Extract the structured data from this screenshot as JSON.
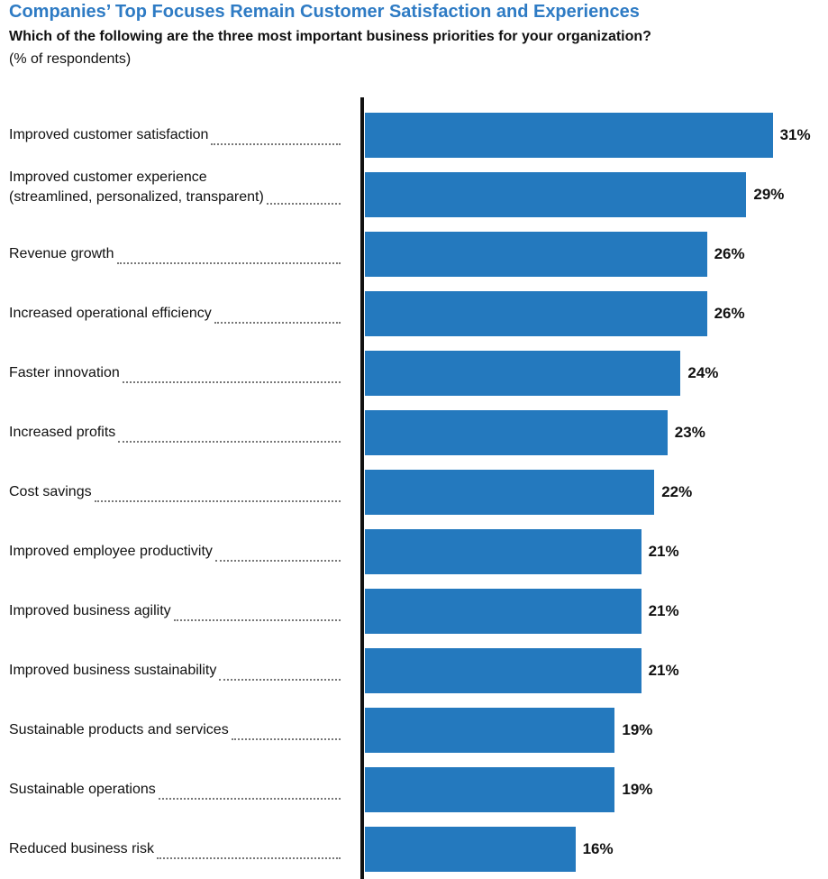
{
  "chart_data": {
    "type": "bar",
    "orientation": "horizontal",
    "title": "Companies’ Top Focuses Remain Customer Satisfaction and Experiences",
    "subtitle": "Which of the following are the three most important business priorities for your organization?",
    "unit_note": "(% of respondents)",
    "categories": [
      "Improved customer satisfaction",
      "Improved customer experience\n(streamlined, personalized, transparent)",
      "Revenue growth",
      "Increased operational efficiency",
      "Faster innovation",
      "Increased profits",
      "Cost savings",
      "Improved employee productivity",
      "Improved business agility",
      "Improved business sustainability",
      "Sustainable products and services",
      "Sustainable operations",
      "Reduced business risk"
    ],
    "values": [
      31,
      29,
      26,
      26,
      24,
      23,
      22,
      21,
      21,
      21,
      19,
      19,
      16
    ],
    "value_labels": [
      "31%",
      "29%",
      "26%",
      "26%",
      "24%",
      "23%",
      "22%",
      "21%",
      "21%",
      "21%",
      "19%",
      "19%",
      "16%"
    ],
    "grid": false,
    "legend": "none",
    "bar_color": "#2479be",
    "title_color": "#2e7bc4"
  }
}
